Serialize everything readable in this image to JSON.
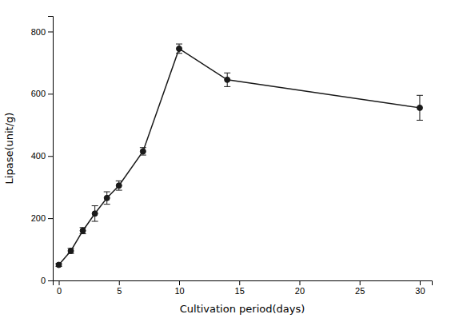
{
  "chart_data": {
    "type": "line",
    "x": [
      0,
      1,
      2,
      3,
      4,
      5,
      7,
      10,
      14,
      30
    ],
    "values": [
      50,
      95,
      160,
      215,
      265,
      305,
      415,
      745,
      645,
      555
    ],
    "yerr": [
      5,
      8,
      10,
      25,
      20,
      15,
      12,
      15,
      22,
      40
    ],
    "xlabel": "Cultivation period(days)",
    "ylabel": "Lipase(unit/g)",
    "xlim": [
      -0.5,
      31
    ],
    "ylim": [
      0,
      850
    ],
    "xticks": [
      0,
      5,
      10,
      15,
      20,
      25,
      30
    ],
    "yticks": [
      0,
      200,
      400,
      600,
      800
    ],
    "color": "#1a1a1a",
    "marker": "circle",
    "line_style": "solid"
  }
}
